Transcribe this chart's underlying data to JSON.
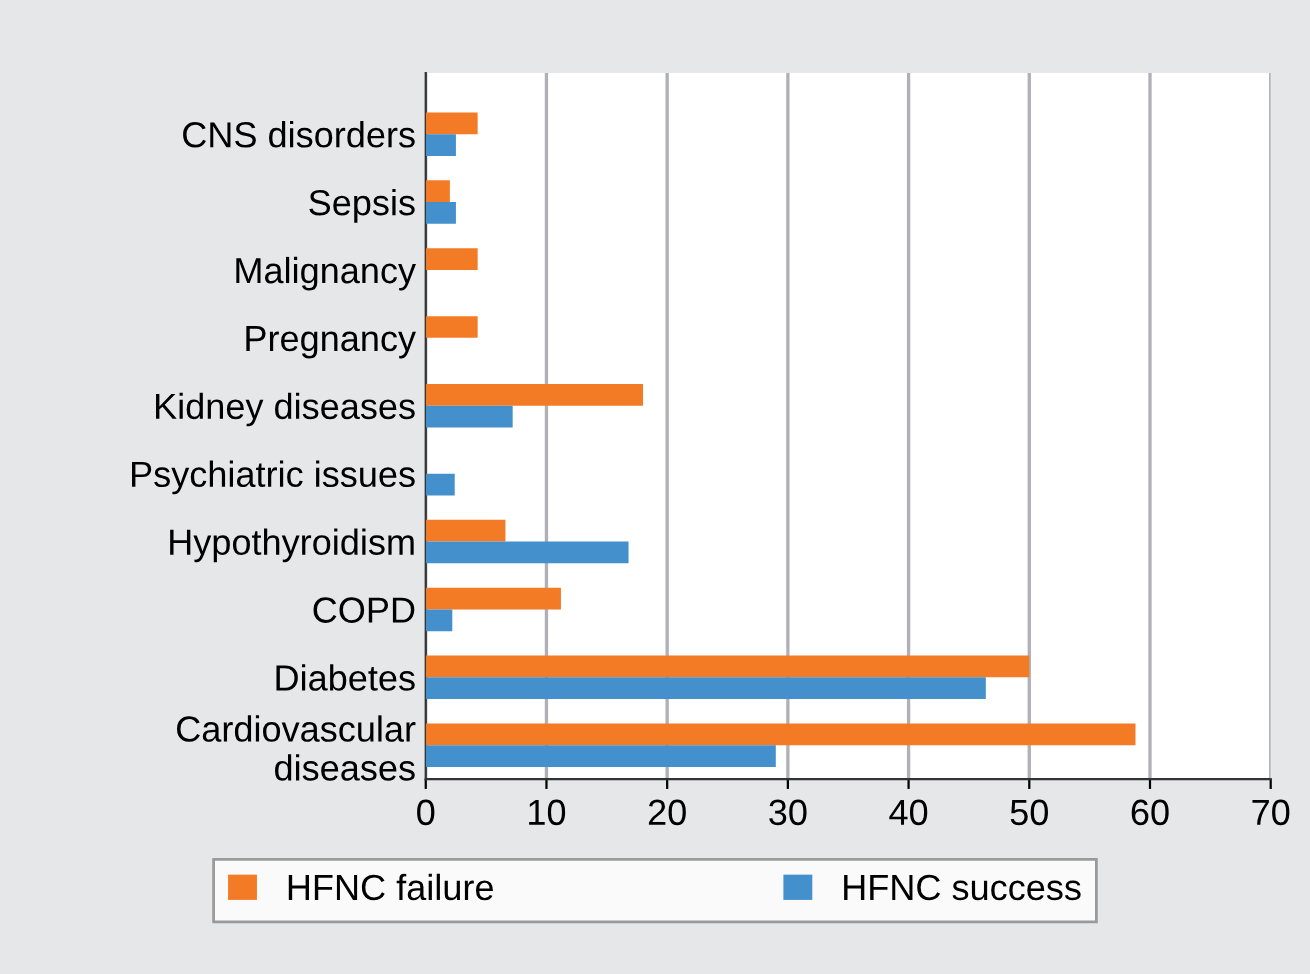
{
  "chart_data": {
    "type": "bar",
    "orientation": "horizontal",
    "categories": [
      "CNS disorders",
      "Sepsis",
      "Malignancy",
      "Pregnancy",
      "Kidney diseases",
      "Psychiatric issues",
      "Hypothyroidism",
      "COPD",
      "Diabetes",
      "Cardiovascular\ndiseases"
    ],
    "series": [
      {
        "name": "HFNC failure",
        "color": "#f47b25",
        "values": [
          4.3,
          2.0,
          4.3,
          4.3,
          18.0,
          null,
          6.6,
          11.2,
          50.0,
          58.8
        ]
      },
      {
        "name": "HFNC success",
        "color": "#4390cd",
        "values": [
          2.5,
          2.5,
          null,
          null,
          7.2,
          2.4,
          16.8,
          2.2,
          46.4,
          29.0
        ]
      }
    ],
    "xlim": [
      0,
      70
    ],
    "xticks": [
      0,
      10,
      20,
      30,
      40,
      50,
      60,
      70
    ],
    "grid": "x",
    "legend": "bottom"
  }
}
